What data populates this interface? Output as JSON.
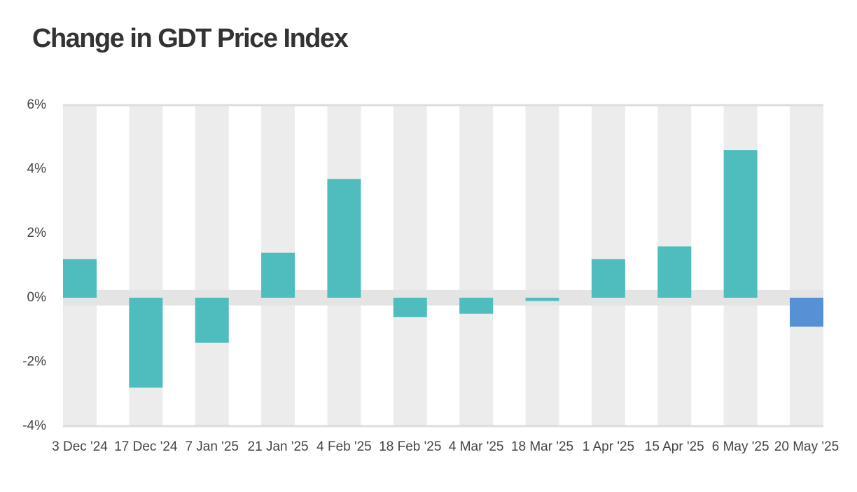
{
  "chart_data": {
    "type": "bar",
    "title": "Change in GDT Price Index",
    "categories": [
      "3 Dec '24",
      "17 Dec '24",
      "7 Jan '25",
      "21 Jan '25",
      "4 Feb '25",
      "18 Feb '25",
      "4 Mar '25",
      "18 Mar '25",
      "1 Apr '25",
      "15 Apr '25",
      "6 May '25",
      "20 May '25"
    ],
    "values": [
      1.2,
      -2.8,
      -1.4,
      1.4,
      3.7,
      -0.6,
      -0.5,
      -0.1,
      1.2,
      1.6,
      4.6,
      -0.9
    ],
    "colors": [
      "#4fbdbd",
      "#4fbdbd",
      "#4fbdbd",
      "#4fbdbd",
      "#4fbdbd",
      "#4fbdbd",
      "#4fbdbd",
      "#4fbdbd",
      "#4fbdbd",
      "#4fbdbd",
      "#4fbdbd",
      "#5890d6"
    ],
    "ylim": [
      -4,
      6
    ],
    "yticks": [
      {
        "value": -4,
        "label": "-4%"
      },
      {
        "value": -2,
        "label": "-2%"
      },
      {
        "value": 0,
        "label": "0%"
      },
      {
        "value": 2,
        "label": "2%"
      },
      {
        "value": 4,
        "label": "4%"
      },
      {
        "value": 6,
        "label": "6%"
      }
    ]
  }
}
